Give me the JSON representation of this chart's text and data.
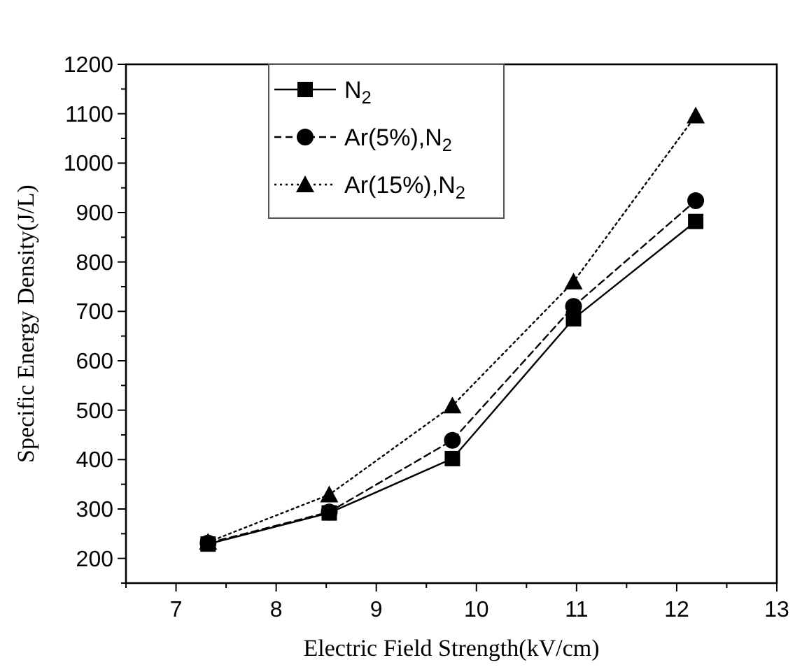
{
  "chart_data": {
    "type": "line",
    "xlabel": "Electric Field Strength(kV/cm)",
    "ylabel": "Specific Energy Density(J/L)",
    "xlim": [
      6.5,
      13
    ],
    "xticks": [
      7,
      8,
      9,
      10,
      11,
      12,
      13
    ],
    "ylim": [
      150,
      1200
    ],
    "yticks": [
      200,
      300,
      400,
      500,
      600,
      700,
      800,
      900,
      1000,
      1100,
      1200
    ],
    "x": [
      7.32,
      8.53,
      9.76,
      10.97,
      12.19
    ],
    "series": [
      {
        "name": "N$_{2}$",
        "color": "#000000",
        "marker": "square",
        "line_style": "solid",
        "values": [
          229,
          292,
          402,
          685,
          882
        ]
      },
      {
        "name": "Ar(5%),N$_{2}$",
        "color": "#000000",
        "marker": "circle",
        "line_style": "dashed",
        "values": [
          231,
          294,
          439,
          710,
          924
        ]
      },
      {
        "name": "Ar(15%),N$_{2}$",
        "color": "#000000",
        "marker": "triangle",
        "line_style": "dotted",
        "values": [
          233,
          329,
          509,
          760,
          1096
        ]
      }
    ],
    "grid": false,
    "legend": "top left"
  }
}
